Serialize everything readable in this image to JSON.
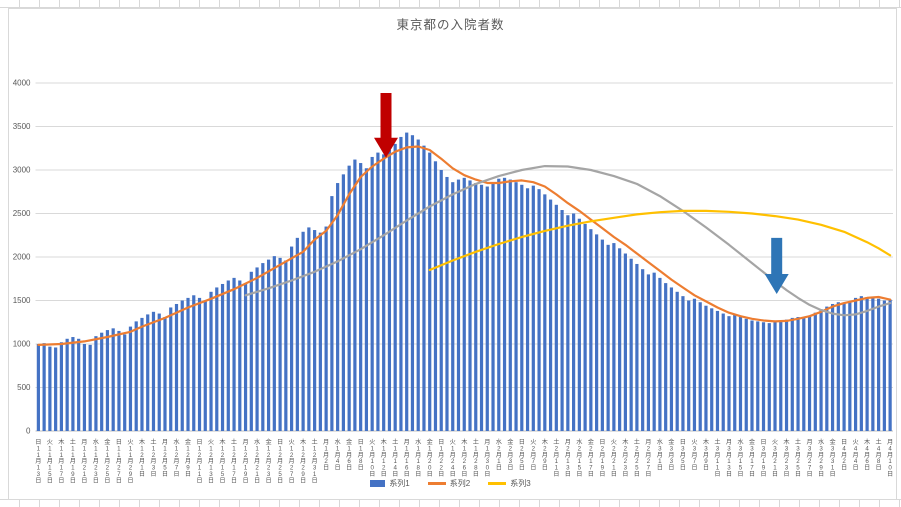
{
  "chart_data": {
    "type": "bar",
    "combo": "bar with 3 overlay lines",
    "title": "東京都の入院者数",
    "xlabel": "",
    "ylabel": "",
    "ylim": [
      0,
      4000
    ],
    "y_ticks": [
      0,
      500,
      1000,
      1500,
      2000,
      2500,
      3000,
      3500,
      4000
    ],
    "grid": true,
    "x_tick_labels": [
      "日11月13日",
      "火11月15日",
      "木11月17日",
      "土11月19日",
      "月11月21日",
      "水11月23日",
      "金11月25日",
      "日11月27日",
      "火11月29日",
      "木12月1日",
      "土12月3日",
      "月12月5日",
      "水12月7日",
      "金12月9日",
      "日12月11日",
      "火12月13日",
      "木12月15日",
      "土12月17日",
      "月12月19日",
      "水12月21日",
      "金12月23日",
      "日12月25日",
      "火12月27日",
      "木12月29日",
      "土12月31日",
      "月1月2日",
      "水1月4日",
      "金1月6日",
      "日1月8日",
      "火1月10日",
      "木1月12日",
      "土1月14日",
      "月1月16日",
      "水1月18日",
      "金1月20日",
      "日1月22日",
      "火1月24日",
      "木1月26日",
      "土1月28日",
      "月1月30日",
      "水2月1日",
      "金2月3日",
      "日2月5日",
      "火2月7日",
      "木2月9日",
      "土2月11日",
      "月2月13日",
      "水2月15日",
      "金2月17日",
      "日2月19日",
      "火2月21日",
      "木2月23日",
      "土2月25日",
      "月2月27日",
      "水3月1日",
      "金3月3日",
      "日3月5日",
      "火3月7日",
      "木3月9日",
      "土3月11日",
      "月3月13日",
      "水3月15日",
      "金3月17日",
      "日3月19日",
      "火3月21日",
      "木3月23日",
      "土3月25日",
      "月3月27日",
      "水3月29日",
      "金3月31日",
      "日4月2日",
      "火4月4日",
      "木4月6日",
      "土4月8日",
      "月4月10日"
    ],
    "bars": {
      "id": "daily-hospitalized-bars",
      "color": "#4472C4",
      "values": [
        1000,
        1010,
        970,
        960,
        1020,
        1060,
        1080,
        1060,
        1000,
        990,
        1090,
        1130,
        1160,
        1180,
        1150,
        1110,
        1200,
        1260,
        1300,
        1340,
        1370,
        1350,
        1310,
        1420,
        1460,
        1500,
        1530,
        1560,
        1530,
        1490,
        1600,
        1650,
        1690,
        1730,
        1760,
        1730,
        1700,
        1830,
        1880,
        1930,
        1970,
        2010,
        1990,
        1960,
        2120,
        2220,
        2290,
        2340,
        2310,
        2280,
        2350,
        2700,
        2850,
        2950,
        3050,
        3120,
        3080,
        3020,
        3150,
        3200,
        3180,
        3230,
        3300,
        3380,
        3430,
        3400,
        3350,
        3280,
        3200,
        3100,
        3000,
        2920,
        2860,
        2890,
        2910,
        2880,
        2850,
        2830,
        2810,
        2840,
        2900,
        2910,
        2890,
        2860,
        2830,
        2790,
        2820,
        2780,
        2720,
        2660,
        2600,
        2540,
        2480,
        2500,
        2440,
        2380,
        2320,
        2260,
        2200,
        2140,
        2160,
        2100,
        2040,
        1980,
        1920,
        1860,
        1800,
        1820,
        1760,
        1700,
        1650,
        1600,
        1550,
        1500,
        1520,
        1480,
        1440,
        1410,
        1380,
        1350,
        1320,
        1340,
        1310,
        1290,
        1270,
        1260,
        1250,
        1240,
        1260,
        1270,
        1280,
        1300,
        1310,
        1300,
        1320,
        1360,
        1400,
        1430,
        1460,
        1480,
        1470,
        1490,
        1530,
        1550,
        1540,
        1530,
        1520,
        1500,
        1510
      ]
    },
    "lines": [
      {
        "id": "orange-line",
        "color": "#ED7D31",
        "x": [
          0,
          4,
          8,
          12,
          16,
          18,
          22,
          26,
          30,
          34,
          38,
          42,
          46,
          48,
          50,
          52,
          54,
          56,
          58,
          60,
          62,
          64,
          66,
          68,
          70,
          72,
          74,
          76,
          78,
          80,
          82,
          84,
          86,
          88,
          90,
          92,
          94,
          96,
          98,
          100,
          102,
          104,
          106,
          108,
          110,
          112,
          114,
          116,
          118,
          120,
          122,
          124,
          126,
          128,
          130,
          132,
          134,
          136,
          138,
          140,
          142,
          144,
          146,
          148
        ],
        "values": [
          990,
          1000,
          1030,
          1080,
          1140,
          1200,
          1300,
          1420,
          1520,
          1630,
          1760,
          1910,
          2060,
          2200,
          2300,
          2480,
          2720,
          2920,
          3040,
          3130,
          3210,
          3260,
          3270,
          3230,
          3130,
          3020,
          2940,
          2890,
          2850,
          2850,
          2870,
          2880,
          2860,
          2810,
          2720,
          2620,
          2530,
          2430,
          2330,
          2230,
          2140,
          2040,
          1940,
          1840,
          1740,
          1650,
          1560,
          1490,
          1420,
          1360,
          1320,
          1290,
          1270,
          1260,
          1265,
          1290,
          1320,
          1370,
          1430,
          1470,
          1500,
          1530,
          1540,
          1510
        ]
      },
      {
        "id": "gray-line",
        "color": "#A5A5A5",
        "x": [
          36,
          40,
          44,
          48,
          52,
          56,
          60,
          64,
          68,
          72,
          76,
          80,
          84,
          88,
          92,
          96,
          100,
          104,
          108,
          112,
          116,
          120,
          124,
          128,
          130,
          132,
          134,
          136,
          138,
          140,
          142,
          144,
          146,
          148
        ],
        "values": [
          1560,
          1640,
          1730,
          1830,
          1950,
          2090,
          2250,
          2420,
          2580,
          2720,
          2840,
          2930,
          3000,
          3045,
          3040,
          3000,
          2930,
          2840,
          2700,
          2530,
          2340,
          2140,
          1930,
          1720,
          1620,
          1530,
          1450,
          1390,
          1350,
          1330,
          1340,
          1380,
          1430,
          1470
        ]
      },
      {
        "id": "yellow-line",
        "color": "#FFC000",
        "x": [
          68,
          72,
          76,
          80,
          84,
          88,
          92,
          96,
          100,
          104,
          108,
          112,
          116,
          120,
          124,
          128,
          132,
          136,
          140,
          144,
          146,
          148
        ],
        "values": [
          1850,
          1960,
          2060,
          2150,
          2230,
          2300,
          2360,
          2410,
          2450,
          2490,
          2515,
          2530,
          2530,
          2520,
          2500,
          2470,
          2430,
          2370,
          2290,
          2170,
          2100,
          2020
        ]
      }
    ],
    "annotations": [
      {
        "id": "red-arrow",
        "shape": "block-arrow-down",
        "color": "#C00000",
        "x_day": 60.9,
        "tail_value": 3885,
        "tip_value": 3140
      },
      {
        "id": "blue-arrow",
        "shape": "block-arrow-down",
        "color": "#2E75B6",
        "x_day": 128.8,
        "tail_value": 2220,
        "tip_value": 1575
      }
    ]
  },
  "legend": {
    "items": [
      {
        "label": "系列1",
        "color": "#4472C4",
        "type": "bar"
      },
      {
        "label": "系列2",
        "color": "#ED7D31",
        "type": "line"
      },
      {
        "label": "系列3",
        "color": "#FFC000",
        "type": "line"
      }
    ]
  }
}
